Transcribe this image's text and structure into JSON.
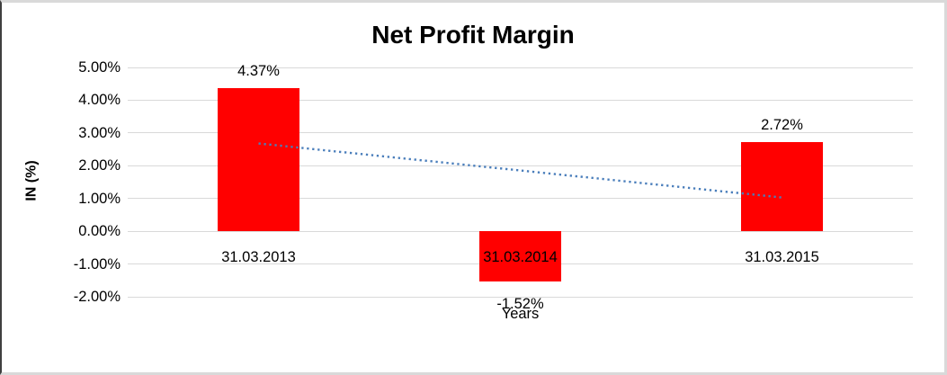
{
  "window": {
    "background_color": "#ffffff",
    "frame_border_color": "#d9d9d9",
    "frame_left_border_color": "#3f3f3f"
  },
  "chart_data": {
    "type": "bar",
    "title": "Net Profit Margin",
    "xlabel": "Years",
    "ylabel": "IN (%)",
    "categories": [
      "31.03.2013",
      "31.03.2014",
      "31.03.2015"
    ],
    "values": [
      4.37,
      -1.52,
      2.72
    ],
    "data_labels": [
      "4.37%",
      "-1.52%",
      "2.72%"
    ],
    "bar_color": "#ff0000",
    "ylim": [
      -2,
      5
    ],
    "ytick_step": 1,
    "ytick_labels": [
      "5.00%",
      "4.00%",
      "3.00%",
      "2.00%",
      "1.00%",
      "0.00%",
      "-1.00%",
      "-2.00%"
    ],
    "ytick_values": [
      5,
      4,
      3,
      2,
      1,
      0,
      -1,
      -2
    ],
    "grid": true,
    "gridline_color": "#d9d9d9",
    "legend": "none",
    "text_color": "#000000",
    "trendline": {
      "type": "linear",
      "line_style": "dotted",
      "color": "#4a7ebb",
      "start_value": 2.68,
      "end_value": 1.03
    }
  }
}
